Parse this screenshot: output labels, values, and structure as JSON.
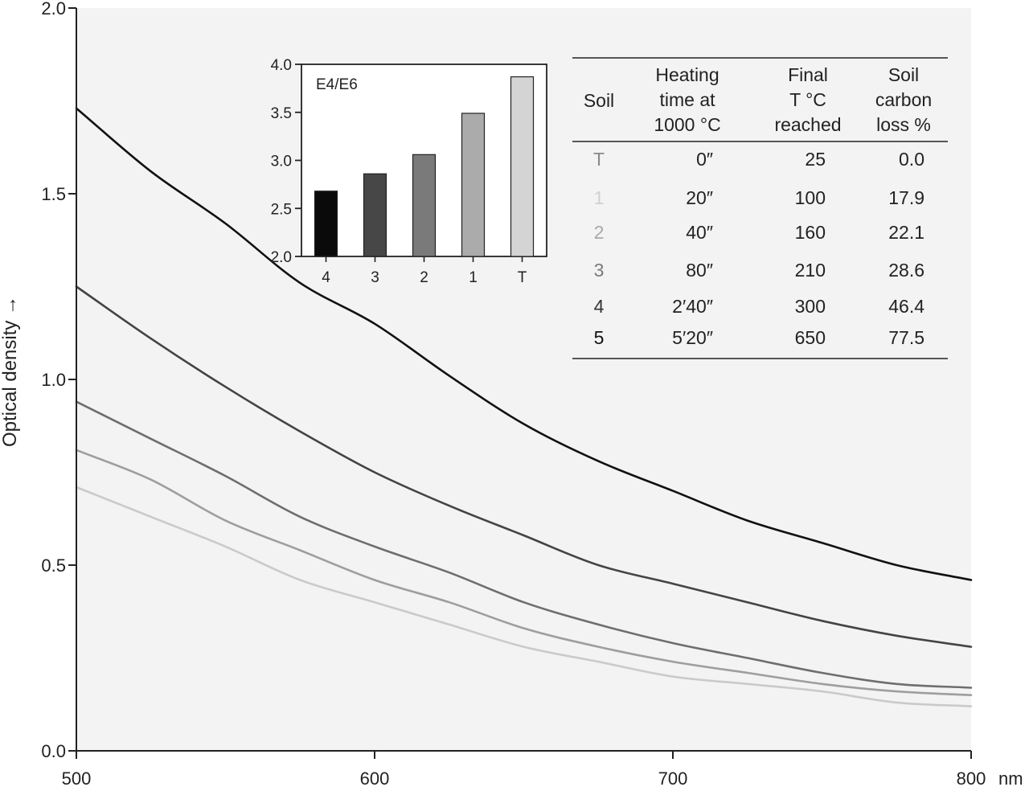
{
  "chart_data": [
    {
      "type": "line",
      "xlabel": "nm",
      "ylabel": "Optical density →",
      "xlim": [
        500,
        800
      ],
      "ylim": [
        0.0,
        2.0
      ],
      "x_ticks": [
        "500",
        "600",
        "700",
        "800"
      ],
      "y_ticks": [
        "0.0",
        "0.5",
        "1.0",
        "1.5",
        "2.0"
      ],
      "grid": false,
      "background": "#f3f3f3",
      "x": [
        500,
        525,
        550,
        575,
        600,
        625,
        650,
        675,
        700,
        725,
        750,
        775,
        800
      ],
      "series": [
        {
          "color": "#111111",
          "values": [
            1.73,
            1.56,
            1.42,
            1.26,
            1.15,
            1.01,
            0.88,
            0.78,
            0.7,
            0.62,
            0.56,
            0.5,
            0.46
          ]
        },
        {
          "color": "#444444",
          "values": [
            1.25,
            1.11,
            0.98,
            0.86,
            0.75,
            0.66,
            0.58,
            0.5,
            0.45,
            0.4,
            0.35,
            0.31,
            0.28
          ]
        },
        {
          "color": "#6e6e6e",
          "values": [
            0.94,
            0.84,
            0.74,
            0.63,
            0.55,
            0.48,
            0.4,
            0.34,
            0.29,
            0.25,
            0.21,
            0.18,
            0.17
          ]
        },
        {
          "color": "#9e9e9e",
          "values": [
            0.81,
            0.73,
            0.62,
            0.54,
            0.46,
            0.4,
            0.33,
            0.28,
            0.24,
            0.21,
            0.18,
            0.16,
            0.15
          ]
        },
        {
          "color": "#cacaca",
          "values": [
            0.71,
            0.63,
            0.55,
            0.46,
            0.4,
            0.34,
            0.28,
            0.24,
            0.2,
            0.18,
            0.16,
            0.13,
            0.12
          ]
        }
      ]
    },
    {
      "type": "bar",
      "title": "E4/E6",
      "categories": [
        "4",
        "3",
        "2",
        "1",
        "T"
      ],
      "values": [
        2.68,
        2.86,
        3.06,
        3.49,
        3.87
      ],
      "colors": [
        "#0a0a0a",
        "#474747",
        "#7a7a7a",
        "#ababab",
        "#d4d4d4"
      ],
      "ylim": [
        2.0,
        4.0
      ],
      "y_ticks": [
        "2.0",
        "2.5",
        "3.0",
        "3.5",
        "4.0"
      ],
      "background": "#ffffff"
    },
    {
      "type": "table",
      "columns": [
        [
          "Soil"
        ],
        [
          "Heating",
          "time at",
          "1000 °C"
        ],
        [
          "Final",
          "T °C",
          "reached"
        ],
        [
          "Soil",
          "carbon",
          "loss %"
        ]
      ],
      "rows": [
        {
          "soil": "T",
          "time": "0″",
          "temp": "25",
          "loss": "0.0",
          "color": "#8a8a8a"
        },
        {
          "soil": "1",
          "time": "20″",
          "temp": "100",
          "loss": "17.9",
          "color": "#d0d0d0"
        },
        {
          "soil": "2",
          "time": "40″",
          "temp": "160",
          "loss": "22.1",
          "color": "#a8a8a8"
        },
        {
          "soil": "3",
          "time": "80″",
          "temp": "210",
          "loss": "28.6",
          "color": "#7a7a7a"
        },
        {
          "soil": "4",
          "time": "2′40″",
          "temp": "300",
          "loss": "46.4",
          "color": "#333333"
        },
        {
          "soil": "5",
          "time": "5′20″",
          "temp": "650",
          "loss": "77.5",
          "color": "#111111"
        }
      ]
    }
  ]
}
